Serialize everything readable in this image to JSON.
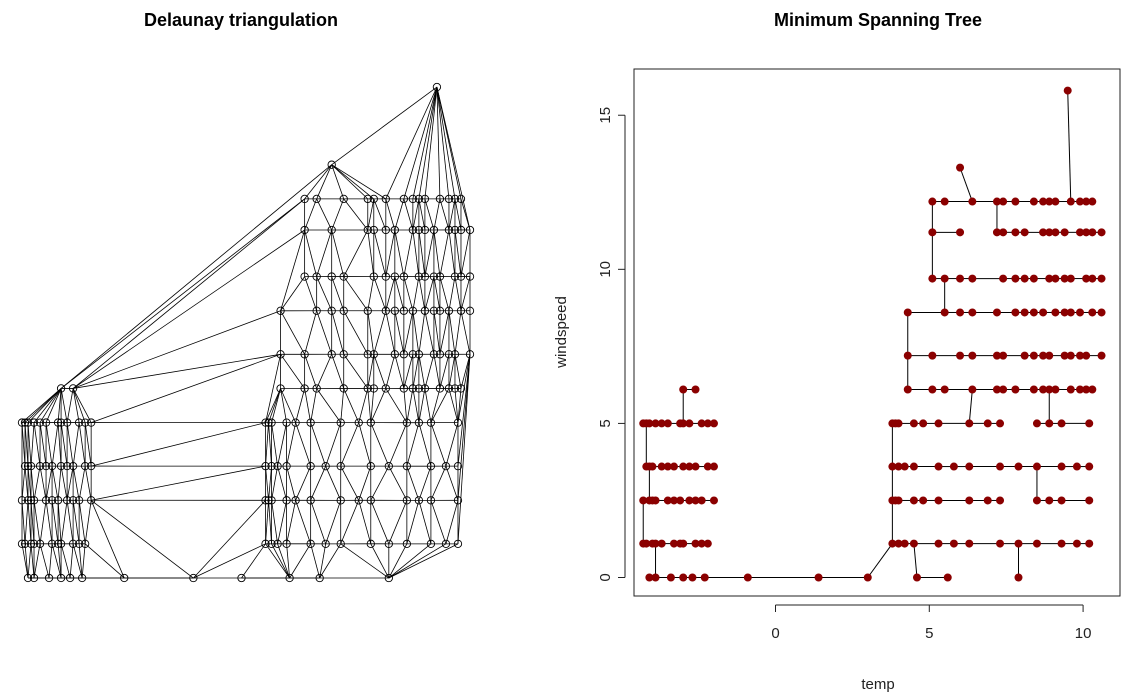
{
  "chart_data": [
    {
      "type": "scatter",
      "title": "Delaunay triangulation",
      "xlabel": "",
      "ylabel": "",
      "axes": false,
      "point_style": "open-circle",
      "edge_style": "black-thin",
      "top_points": [
        [
          9.5,
          15.8
        ],
        [
          6.0,
          13.3
        ]
      ],
      "upper_x": [
        4.3,
        5.1,
        5.5,
        6.0,
        6.4,
        7.2,
        7.4,
        7.8,
        8.1,
        8.4,
        8.7,
        8.9,
        9.1,
        9.4,
        9.6,
        9.9,
        10.1,
        10.3,
        10.6
      ],
      "upper_y": [
        12.2,
        11.2,
        9.7,
        8.6,
        7.2,
        6.1
      ],
      "lower_x": [
        3.8,
        3.9,
        4.0,
        4.2,
        4.5,
        4.8,
        5.3,
        5.8,
        6.3,
        6.9,
        7.3,
        7.9,
        8.5,
        8.9,
        9.3,
        9.8,
        10.2
      ],
      "lower_y": [
        5.0,
        3.6,
        2.5,
        1.1
      ],
      "left_x": [
        -4.3,
        -4.2,
        -4.1,
        -4.0,
        -3.9,
        -3.7,
        -3.5,
        -3.3,
        -3.1,
        -3.0,
        -2.8,
        -2.6,
        -2.4,
        -2.2,
        -2.0
      ],
      "left_y": [
        6.1,
        5.0,
        3.6,
        2.5,
        1.1
      ],
      "bottom_x": [
        -4.1,
        -3.9,
        -3.4,
        -3.0,
        -2.7,
        -2.3,
        -0.9,
        1.4,
        3.0,
        4.6,
        5.6,
        7.9
      ],
      "xlim": [
        -4.3,
        10.6
      ],
      "ylim": [
        0,
        15.8
      ]
    },
    {
      "type": "scatter",
      "title": "Minimum Spanning Tree",
      "xlabel": "temp",
      "ylabel": "windspeed",
      "xticks": [
        0,
        5,
        10
      ],
      "yticks": [
        0,
        5,
        10,
        15
      ],
      "xlim": [
        -4.6,
        11.2
      ],
      "ylim": [
        -0.6,
        16.5
      ],
      "point_color": "#8B0000",
      "edge_color": "#000000",
      "grid": false,
      "legend": "none"
    }
  ]
}
